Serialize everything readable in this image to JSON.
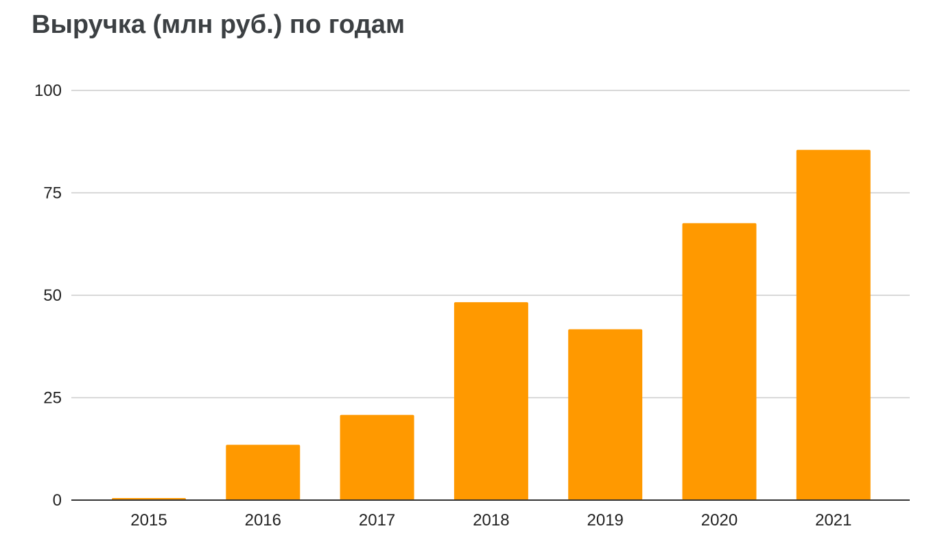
{
  "colors": {
    "bar": "#ff9900",
    "title": "#3c4043",
    "grid": "#cccccc",
    "axis": "#333333",
    "text": "#222222"
  },
  "chart_data": {
    "type": "bar",
    "title": "Выручка (млн руб.) по годам",
    "xlabel": "",
    "ylabel": "",
    "categories": [
      "2015",
      "2016",
      "2017",
      "2018",
      "2019",
      "2020",
      "2021"
    ],
    "values": [
      0.5,
      13.5,
      20.8,
      48.3,
      41.7,
      67.6,
      85.5
    ],
    "ylim": [
      0,
      100
    ],
    "yticks": [
      0,
      25,
      50,
      75,
      100
    ],
    "ytick_labels": [
      "0",
      "25",
      "50",
      "75",
      "100"
    ],
    "grid": true,
    "legend": "none"
  }
}
